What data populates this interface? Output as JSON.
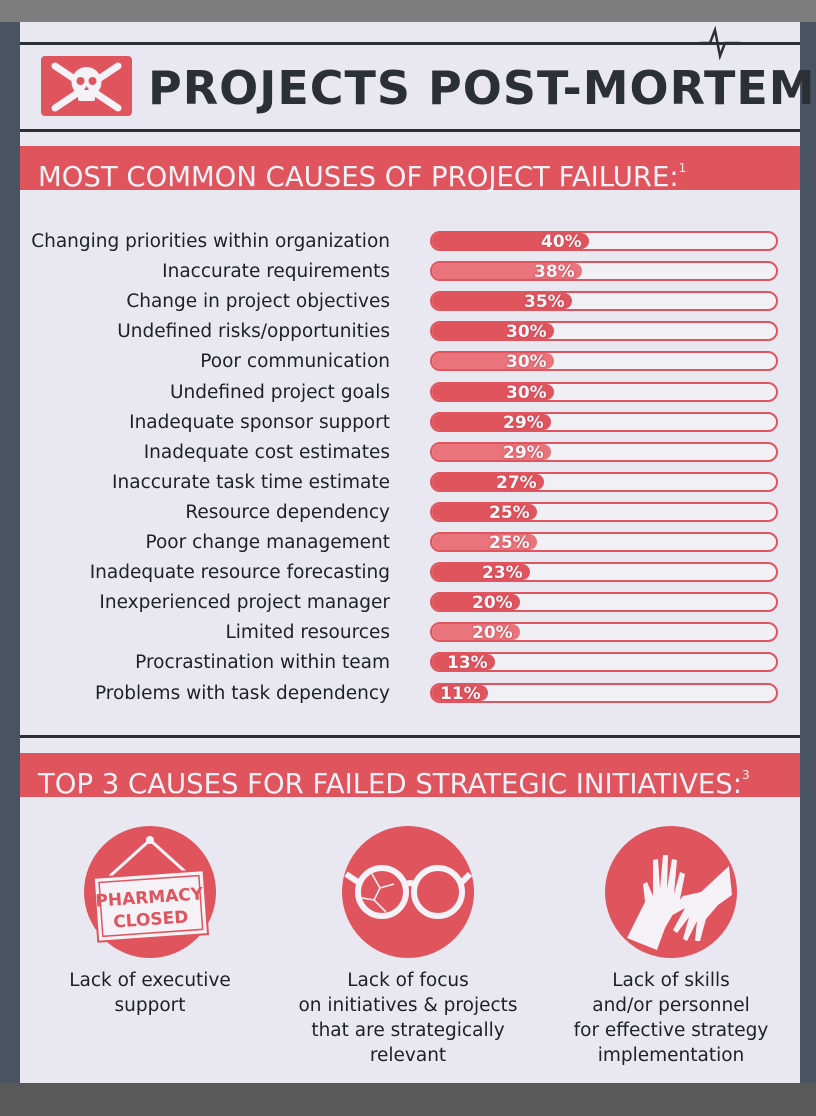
{
  "title": "PROJECTS POST-MORTEM",
  "section1": {
    "heading": "MOST COMMON CAUSES OF PROJECT FAILURE:",
    "note": "1"
  },
  "chart_data": {
    "type": "bar",
    "title": "MOST COMMON CAUSES OF PROJECT FAILURE:",
    "categories": [
      "Changing priorities within organization",
      "Inaccurate requirements",
      "Change in project objectives",
      "Undefined risks/opportunities",
      "Poor communication",
      "Undefined project goals",
      "Inadequate sponsor support",
      "Inadequate cost estimates",
      "Inaccurate task time estimate",
      "Resource dependency",
      "Poor change management",
      "Inadequate resource forecasting",
      "Inexperienced project manager",
      "Limited resources",
      "Procrastination within team",
      "Problems with task dependency"
    ],
    "values": [
      40,
      38,
      35,
      30,
      30,
      30,
      29,
      29,
      27,
      25,
      25,
      23,
      20,
      20,
      13,
      11
    ],
    "value_labels": [
      "40%",
      "38%",
      "35%",
      "30%",
      "30%",
      "30%",
      "29%",
      "29%",
      "27%",
      "25%",
      "25%",
      "23%",
      "20%",
      "20%",
      "13%",
      "11%"
    ],
    "xlim": [
      0,
      100
    ],
    "bar_color": "#e0545e"
  },
  "section2": {
    "heading": "TOP 3 CAUSES FOR FAILED STRATEGIC INITIATIVES:",
    "note": "3",
    "items": [
      {
        "icon": "closed-sign-icon",
        "sign_line1": "PHARMACY",
        "sign_line2": "CLOSED",
        "caption_lines": [
          "Lack of executive",
          "support"
        ]
      },
      {
        "icon": "broken-glasses-icon",
        "caption_lines": [
          "Lack of focus",
          "on initiatives & projects",
          "that are strategically",
          "relevant"
        ]
      },
      {
        "icon": "reaching-hands-icon",
        "caption_lines": [
          "Lack of skills",
          "and/or personnel",
          "for effective strategy",
          "implementation"
        ]
      }
    ]
  },
  "colors": {
    "accent": "#e0545e",
    "ink": "#2b2f36",
    "paper": "#e9e8f0"
  }
}
